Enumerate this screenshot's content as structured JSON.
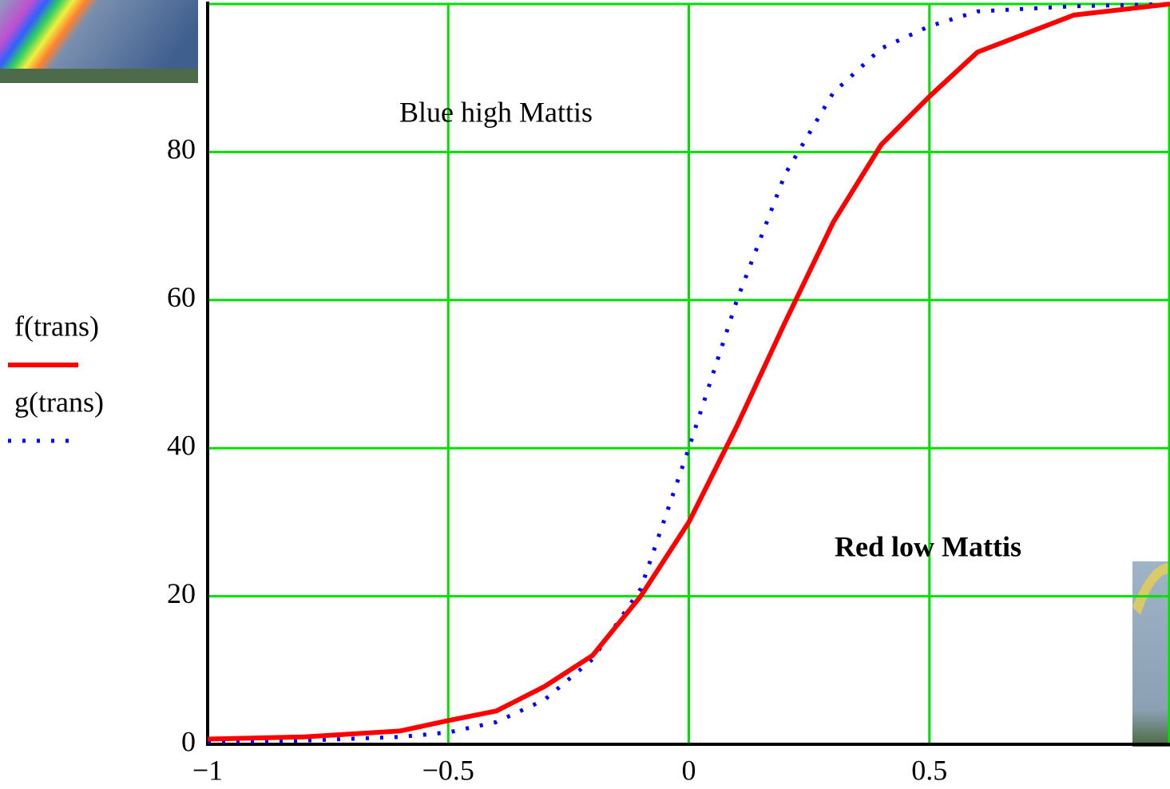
{
  "chart_data": {
    "type": "line",
    "x": [
      -1,
      -0.8,
      -0.6,
      -0.5,
      -0.4,
      -0.3,
      -0.2,
      -0.1,
      0,
      0.1,
      0.2,
      0.3,
      0.4,
      0.5,
      0.6,
      0.8,
      1
    ],
    "series": [
      {
        "name": "f(trans)",
        "color": "#ff0000",
        "style": "solid",
        "values": [
          0.7,
          1.0,
          1.8,
          3.2,
          4.5,
          7.8,
          12,
          20,
          30,
          43,
          57,
          70.5,
          81,
          87.5,
          93.5,
          98.5,
          100
        ]
      },
      {
        "name": "g(trans)",
        "color": "#0000ff",
        "style": "dotted",
        "values": [
          0.3,
          0.5,
          1.0,
          1.6,
          3,
          6,
          11.5,
          21,
          40,
          60,
          77,
          88,
          94,
          97,
          99,
          99.7,
          100
        ]
      }
    ],
    "annotations": [
      "Blue high Mattis",
      "Red low Mattis"
    ],
    "xlim": [
      -1,
      1
    ],
    "xticks": [
      {
        "value": -1,
        "label": "−1"
      },
      {
        "value": -0.5,
        "label": "−0.5"
      },
      0,
      0.5
    ],
    "ylim": [
      0,
      100
    ],
    "yticks": [
      0,
      20,
      40,
      60,
      80
    ],
    "grid": true,
    "grid_color": "#00e000"
  }
}
